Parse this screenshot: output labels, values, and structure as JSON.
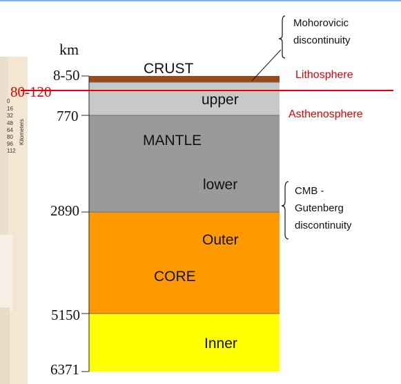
{
  "diagram": {
    "unit_label": "km",
    "depth_labels": [
      "8-50",
      "770",
      "2890",
      "5150",
      "6371"
    ],
    "lithosphere_depth_label": "80-120",
    "layers": {
      "crust": "CRUST",
      "upper": "upper",
      "mantle": "MANTLE",
      "lower": "lower",
      "outer": "Outer",
      "core": "CORE",
      "inner": "Inner"
    },
    "annotations": {
      "moho_line1": "Mohorovicic",
      "moho_line2": "discontinuity",
      "lithosphere": "Lithosphere",
      "asthenosphere": "Asthenosphere",
      "cmb_line1": "CMB -",
      "cmb_line2": "Gutenberg",
      "cmb_line3": "discontinuity"
    },
    "inset": {
      "ticks": [
        "0",
        "16",
        "32",
        "48",
        "64",
        "80",
        "96",
        "112"
      ],
      "axis_label": "Kilometers"
    },
    "colors": {
      "crust": "#9a4a16",
      "upper_mantle": "#c8c8c8",
      "lower_mantle": "#9a9a9a",
      "outer_core": "#ff9900",
      "inner_core": "#ffff00",
      "red": "#e00000"
    }
  }
}
